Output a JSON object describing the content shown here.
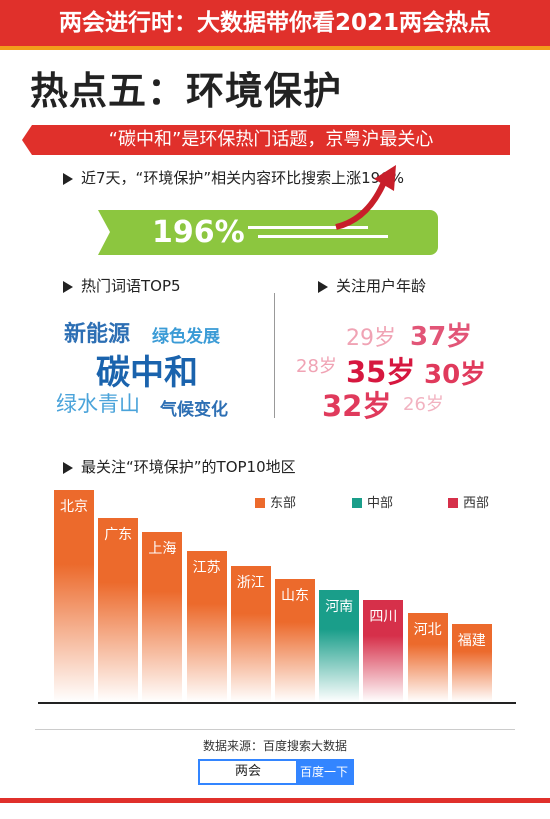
{
  "header": {
    "title": "两会进行时：大数据带你看2021两会热点"
  },
  "heading": "热点五：环境保护",
  "banner": "“碳中和”是环保热门话题，京粤沪最关心",
  "growth": {
    "section": "近7天，“环境保护”相关内容环比搜索上涨196%",
    "value": "196%"
  },
  "keywords": {
    "section": "热门词语TOP5",
    "items": [
      {
        "text": "新能源",
        "color": "#2d6fb4"
      },
      {
        "text": "绿色发展",
        "color": "#3a9bd6"
      },
      {
        "text": "碳中和",
        "color": "#1a63ad"
      },
      {
        "text": "绿水青山",
        "color": "#4aa3da"
      },
      {
        "text": "气候变化",
        "color": "#2d6fb4"
      }
    ]
  },
  "ages": {
    "section": "关注用户年龄",
    "items": [
      {
        "text": "29岁",
        "color": "#f0a3b4"
      },
      {
        "text": "37岁",
        "color": "#e25577"
      },
      {
        "text": "28岁",
        "color": "#f0a3b4"
      },
      {
        "text": "35岁",
        "color": "#d6173f"
      },
      {
        "text": "30岁",
        "color": "#e03a5c"
      },
      {
        "text": "32岁",
        "color": "#e03a5c"
      },
      {
        "text": "26岁",
        "color": "#f2b3c1"
      }
    ]
  },
  "regions_section": "最关注“环境保护”的TOP10地区",
  "chart_data": {
    "type": "bar",
    "categories": [
      "北京",
      "广东",
      "上海",
      "江苏",
      "浙江",
      "山东",
      "河南",
      "四川",
      "河北",
      "福建"
    ],
    "values": [
      100,
      87,
      80,
      71,
      64,
      58,
      53,
      48,
      42,
      37
    ],
    "groups": [
      "东部",
      "东部",
      "东部",
      "东部",
      "东部",
      "东部",
      "中部",
      "西部",
      "东部",
      "东部"
    ],
    "legend": [
      {
        "name": "东部",
        "color": "#ec6a2c"
      },
      {
        "name": "中部",
        "color": "#1a9e8a"
      },
      {
        "name": "西部",
        "color": "#d6304a"
      }
    ],
    "legend_position": "top-right",
    "note": "values are relative bar heights; no numeric axis shown"
  },
  "source": "数据来源：百度搜索大数据",
  "search": {
    "query": "两会",
    "button": "百度一下"
  }
}
